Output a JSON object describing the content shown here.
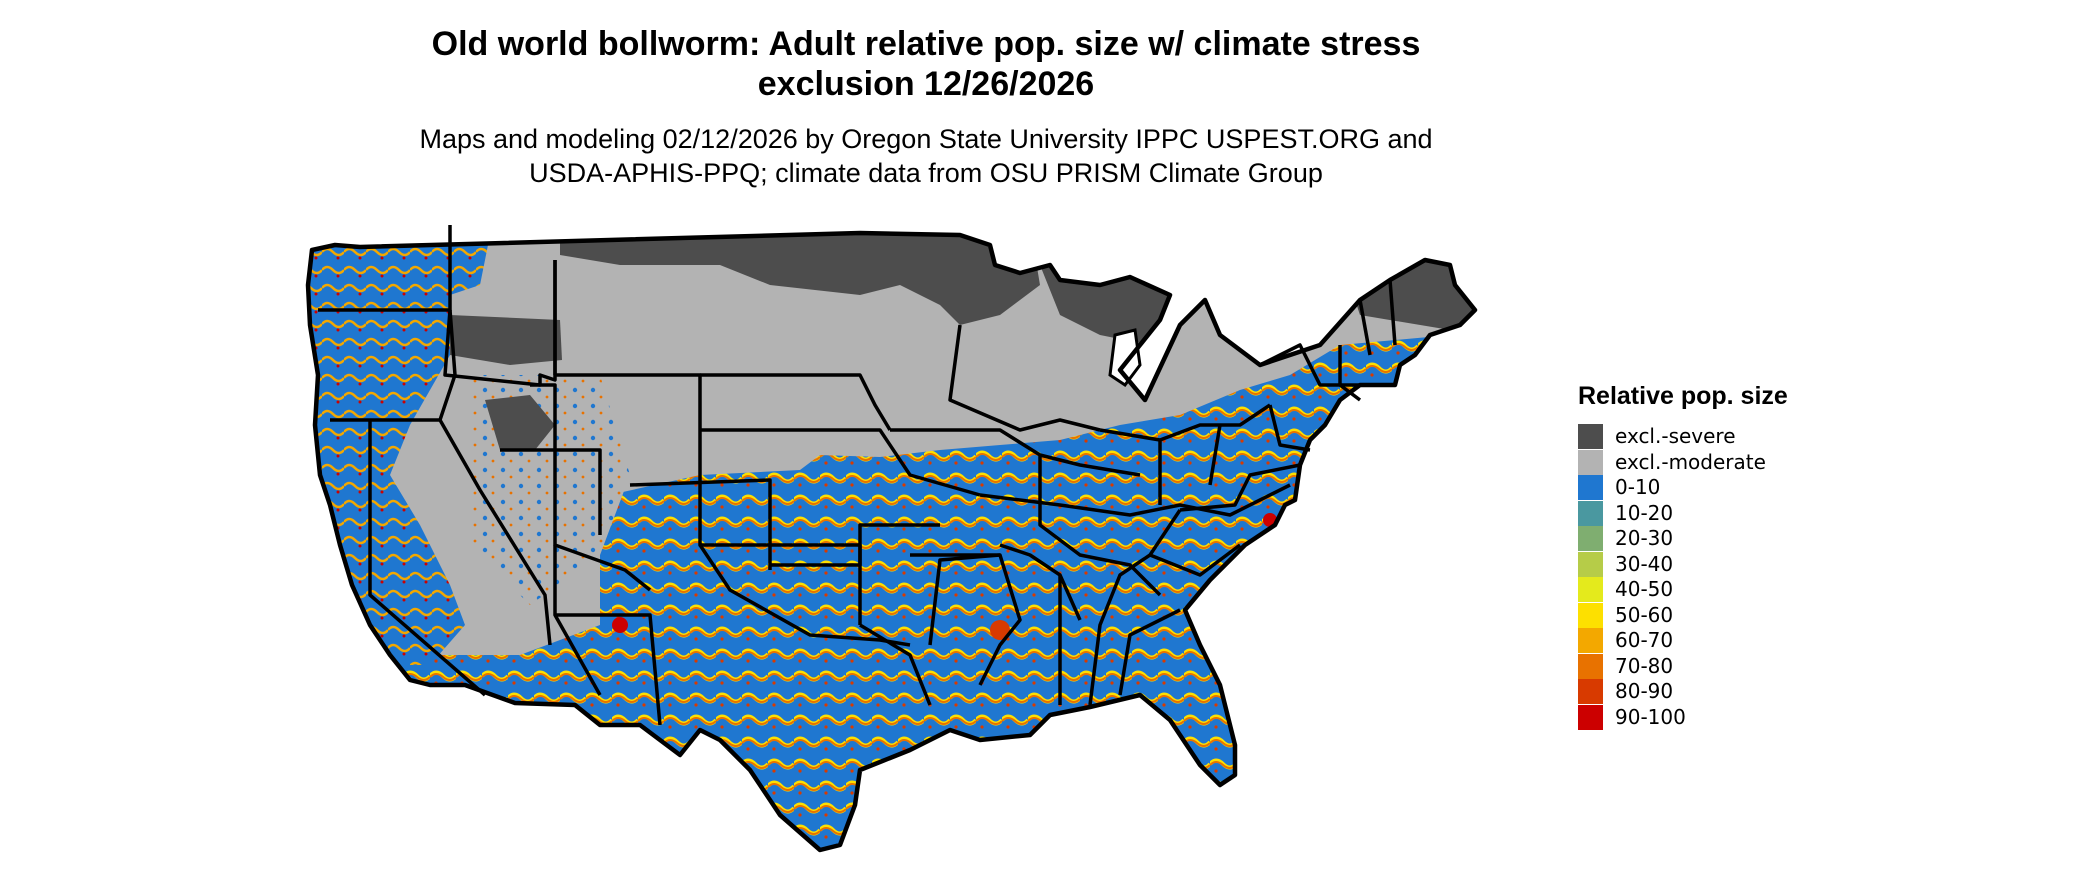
{
  "title_lines": [
    "Old world bollworm: Adult relative pop. size w/ climate stress",
    "exclusion 12/26/2026"
  ],
  "subtitle_lines": [
    "Maps and modeling 02/12/2026 by Oregon State University IPPC USPEST.ORG and",
    "USDA-APHIS-PPQ; climate data from OSU PRISM Climate Group"
  ],
  "legend": {
    "title": "Relative pop. size",
    "items": [
      {
        "label": "excl.-severe",
        "color": "#4d4d4d"
      },
      {
        "label": "excl.-moderate",
        "color": "#b3b3b3"
      },
      {
        "label": "0-10",
        "color": "#1f77d0"
      },
      {
        "label": "10-20",
        "color": "#4a98a0"
      },
      {
        "label": "20-30",
        "color": "#7fae70"
      },
      {
        "label": "30-40",
        "color": "#b6cc48"
      },
      {
        "label": "40-50",
        "color": "#e4ea1c"
      },
      {
        "label": "50-60",
        "color": "#fde000"
      },
      {
        "label": "60-70",
        "color": "#f3a800"
      },
      {
        "label": "70-80",
        "color": "#e87200"
      },
      {
        "label": "80-90",
        "color": "#d83a00"
      },
      {
        "label": "90-100",
        "color": "#cc0000"
      }
    ]
  }
}
